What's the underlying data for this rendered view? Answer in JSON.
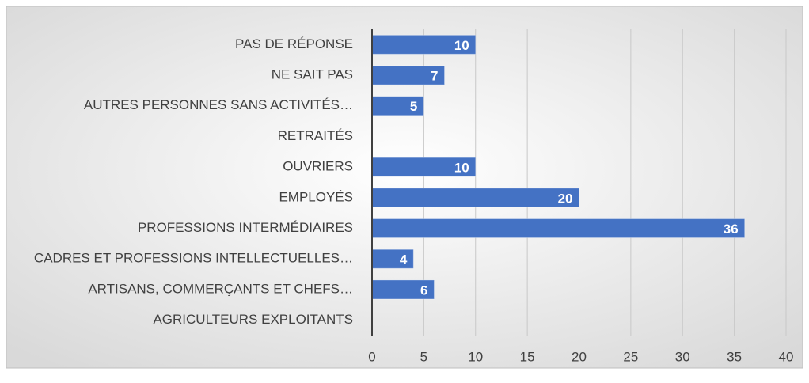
{
  "chart_data": {
    "type": "bar",
    "orientation": "horizontal",
    "categories": [
      "PAS DE RÉPONSE",
      "NE SAIT PAS",
      "AUTRES PERSONNES SANS ACTIVITÉS…",
      "RETRAITÉS",
      "OUVRIERS",
      "EMPLOYÉS",
      "PROFESSIONS INTERMÉDIAIRES",
      "CADRES ET PROFESSIONS INTELLECTUELLES…",
      "ARTISANS, COMMERÇANTS ET CHEFS…",
      "AGRICULTEURS EXPLOITANTS"
    ],
    "values": [
      10,
      7,
      5,
      0,
      10,
      20,
      36,
      4,
      6,
      0
    ],
    "color": "#4472c4",
    "xlim": [
      0,
      40
    ],
    "xticks": [
      0,
      5,
      10,
      15,
      20,
      25,
      30,
      35,
      40
    ],
    "grid": true
  }
}
